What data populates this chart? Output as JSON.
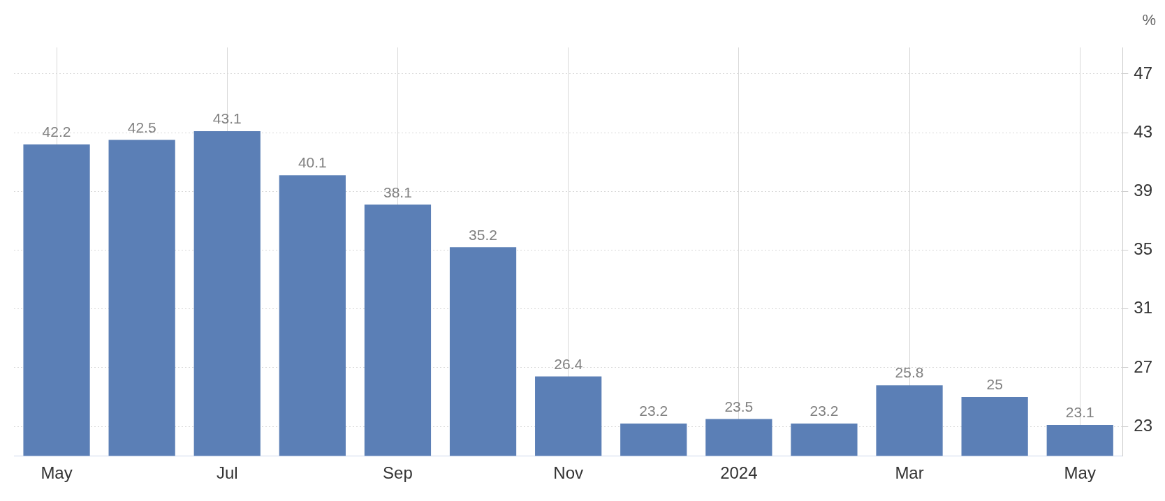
{
  "chart_data": {
    "type": "bar",
    "ylabel": "%",
    "categories": [
      "May",
      null,
      "Jul",
      null,
      "Sep",
      null,
      "Nov",
      null,
      "2024",
      null,
      "Mar",
      null,
      "May"
    ],
    "values": [
      42.2,
      42.5,
      43.1,
      40.1,
      38.1,
      35.2,
      26.4,
      23.2,
      23.5,
      23.2,
      25.8,
      25,
      23.1
    ],
    "color": "#5b7fb6",
    "ylim": [
      21,
      48.8
    ],
    "yticks": [
      23,
      27,
      31,
      35,
      39,
      43,
      47
    ],
    "grid": true,
    "data_labels": true
  }
}
